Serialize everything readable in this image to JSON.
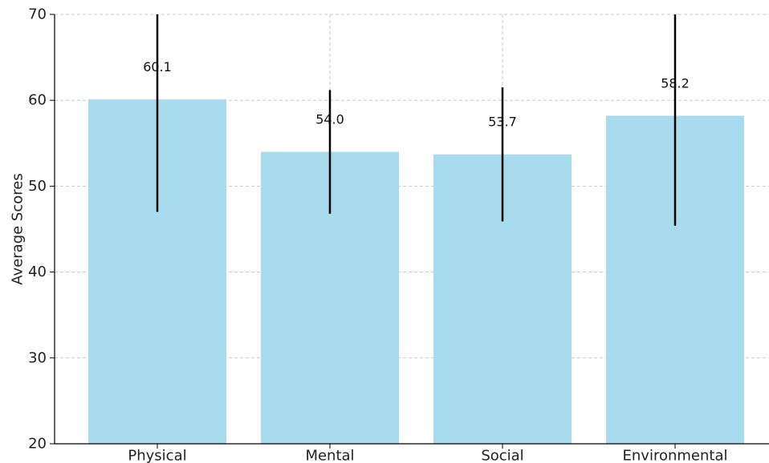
{
  "chart_data": {
    "type": "bar",
    "title": "",
    "xlabel": "",
    "ylabel": "Average Scores",
    "categories": [
      "Physical",
      "Mental",
      "Social",
      "Environmental"
    ],
    "values": [
      60.1,
      54.0,
      53.7,
      58.2
    ],
    "value_labels": [
      "60.1",
      "54.0",
      "53.7",
      "58.2"
    ],
    "error": [
      13.1,
      7.2,
      7.8,
      12.8
    ],
    "ylim": [
      20,
      70
    ],
    "yticks": [
      20,
      30,
      40,
      50,
      60,
      70
    ],
    "grid": true,
    "legend": "none",
    "colors": {
      "bar": "#a8dbee",
      "errorbar": "#000000",
      "grid": "#c8c8c8",
      "axis": "#000000"
    }
  }
}
